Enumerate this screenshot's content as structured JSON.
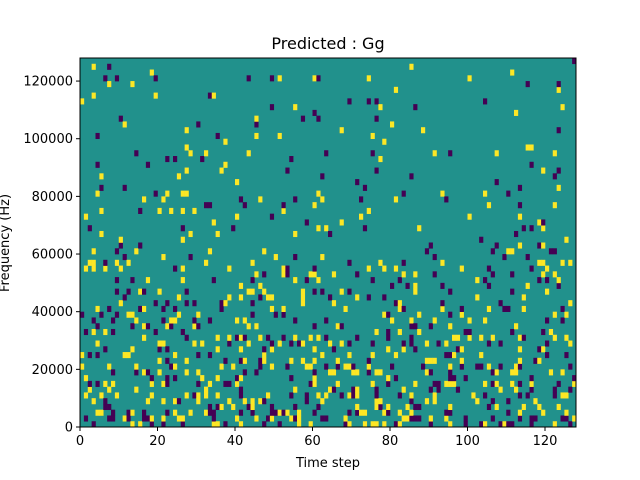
{
  "chart_data": {
    "type": "heatmap",
    "title": "Predicted : Gg",
    "xlabel": "Time step",
    "ylabel": "Frequency (Hz)",
    "xlim": [
      0,
      128
    ],
    "ylim": [
      0,
      128000
    ],
    "xticks": [
      0,
      20,
      40,
      60,
      80,
      100,
      120
    ],
    "yticks": [
      0,
      20000,
      40000,
      60000,
      80000,
      100000,
      120000
    ],
    "ytick_labels": [
      "0",
      "20000",
      "40000",
      "60000",
      "80000",
      "100000",
      "120000"
    ],
    "xtick_labels": [
      "0",
      "20",
      "40",
      "60",
      "80",
      "100",
      "120"
    ],
    "n_time_steps": 128,
    "n_freq_bins": 64,
    "bin_height_hz": 2000,
    "colormap": "viridis",
    "levels": {
      "low": -1,
      "mid": 0,
      "high": 1
    },
    "colors": {
      "low": "#440154",
      "mid": "#21918c",
      "high": "#fde725"
    },
    "background_value": 0,
    "grid": false,
    "legend": "none"
  }
}
